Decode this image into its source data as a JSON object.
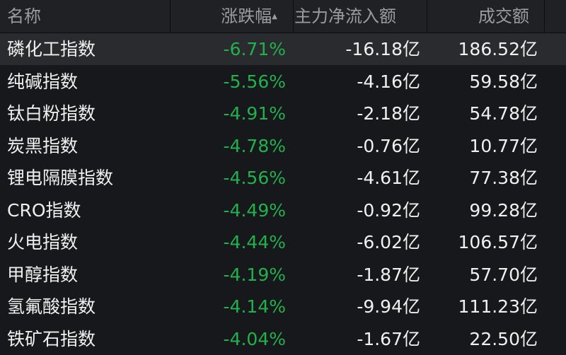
{
  "header": {
    "name": "名称",
    "change": "涨跌幅",
    "sort_icon": "sort-up-icon",
    "net_inflow": "主力净流入额",
    "turnover": "成交额"
  },
  "colors": {
    "down": "#22b14c",
    "background": "#17181b"
  },
  "rows": [
    {
      "name": "磷化工指数",
      "change": "-6.71%",
      "net_inflow": "-16.18亿",
      "turnover": "186.52亿"
    },
    {
      "name": "纯碱指数",
      "change": "-5.56%",
      "net_inflow": "-4.16亿",
      "turnover": "59.58亿"
    },
    {
      "name": "钛白粉指数",
      "change": "-4.91%",
      "net_inflow": "-2.18亿",
      "turnover": "54.78亿"
    },
    {
      "name": "炭黑指数",
      "change": "-4.78%",
      "net_inflow": "-0.76亿",
      "turnover": "10.77亿"
    },
    {
      "name": "锂电隔膜指数",
      "change": "-4.56%",
      "net_inflow": "-4.61亿",
      "turnover": "77.38亿"
    },
    {
      "name": "CRO指数",
      "change": "-4.49%",
      "net_inflow": "-0.92亿",
      "turnover": "99.28亿"
    },
    {
      "name": "火电指数",
      "change": "-4.44%",
      "net_inflow": "-6.02亿",
      "turnover": "106.57亿"
    },
    {
      "name": "甲醇指数",
      "change": "-4.19%",
      "net_inflow": "-1.87亿",
      "turnover": "57.70亿"
    },
    {
      "name": "氢氟酸指数",
      "change": "-4.14%",
      "net_inflow": "-9.94亿",
      "turnover": "111.23亿"
    },
    {
      "name": "铁矿石指数",
      "change": "-4.04%",
      "net_inflow": "-1.67亿",
      "turnover": "22.50亿"
    }
  ]
}
